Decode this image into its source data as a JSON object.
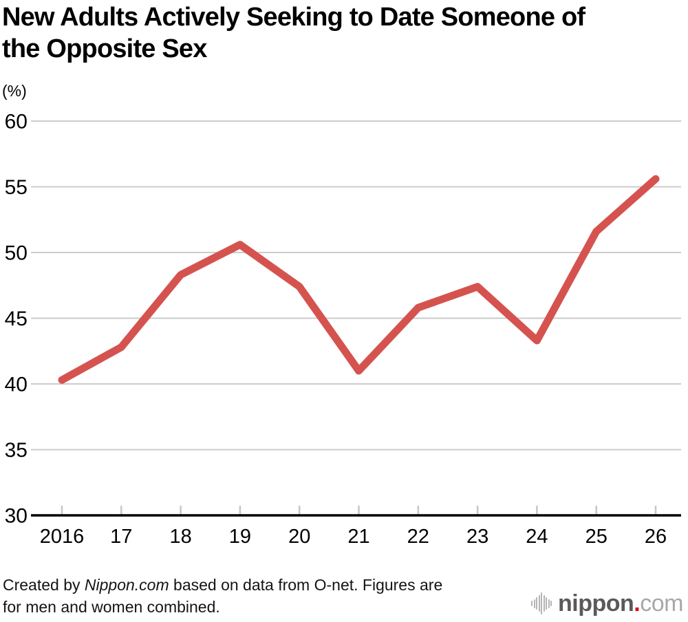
{
  "header": {
    "title_line1": "New Adults Actively Seeking to Date Someone of",
    "title_line2": "the Opposite Sex",
    "unit_label": "(%)"
  },
  "chart_data": {
    "type": "line",
    "title": "New Adults Actively Seeking to Date Someone of the Opposite Sex",
    "categories": [
      "2016",
      "17",
      "18",
      "19",
      "20",
      "21",
      "22",
      "23",
      "24",
      "25",
      "26"
    ],
    "values": [
      40.3,
      42.8,
      48.3,
      50.6,
      47.4,
      41.0,
      45.8,
      47.4,
      43.3,
      51.6,
      55.6
    ],
    "xlabel": "",
    "ylabel": "(%)",
    "ylim": [
      30,
      60
    ],
    "yticks": [
      30,
      35,
      40,
      45,
      50,
      55,
      60
    ],
    "grid": true,
    "legend": "none",
    "line_color": "#d5534f",
    "grid_color": "#cbcbcb",
    "axis_color": "#000000",
    "tick_color": "#c6c6c6"
  },
  "footer": {
    "credit_prefix": "Created by ",
    "credit_source": "Nippon.com",
    "credit_suffix": " based on data from O-net. Figures are\nfor men and women combined."
  },
  "logo": {
    "icon": "waveform-bars-icon",
    "name_bold": "nippon",
    "dot": ".",
    "name_light": "com",
    "colors": {
      "name": "#5a5a5a",
      "light": "#a8a8a8",
      "dot": "#e60012",
      "bars": "#b4b4b4"
    }
  }
}
